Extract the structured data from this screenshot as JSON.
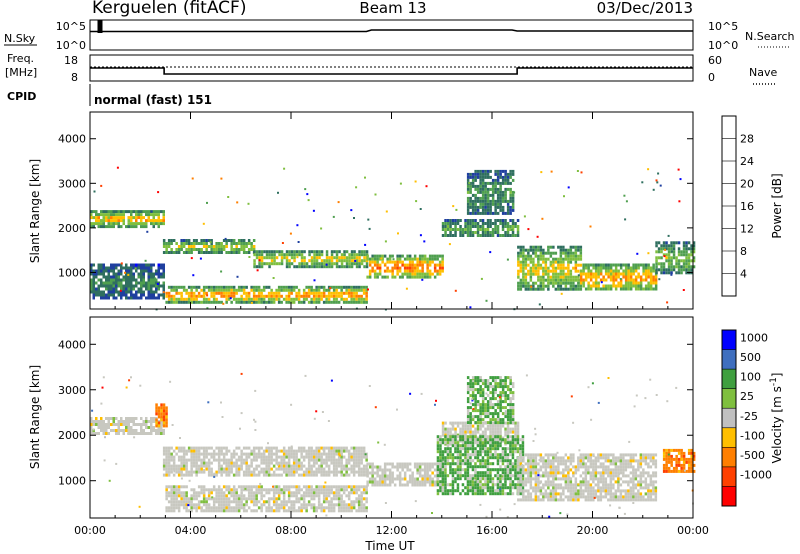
{
  "header": {
    "station": "Kerguelen (fitACF)",
    "beam": "Beam 13",
    "date": "03/Dec/2013"
  },
  "panels": {
    "nsky": {
      "label": "N.Sky",
      "ticks": [
        "10^5",
        "10^0"
      ],
      "right_ticks": [
        "10^5",
        "10^0"
      ],
      "right_label": "N.Search"
    },
    "freq": {
      "label_line1": "Freq.",
      "label_line2": "[MHz]",
      "ticks": [
        "18",
        "8"
      ],
      "right_ticks": [
        "60",
        "0"
      ],
      "right_label": "Nave"
    },
    "cpid": {
      "label": "CPID",
      "value": "normal (fast) 151"
    }
  },
  "colors": {
    "power": [
      "#0000ff",
      "#1f3f9f",
      "#2f6f5f",
      "#4f9f4f",
      "#7fbf3f",
      "#ffbf00",
      "#ff7f00",
      "#ff4000",
      "#ff0000"
    ],
    "velocity": [
      "#ff0000",
      "#ff4000",
      "#ff7f00",
      "#ffbf00",
      "#c0c0c0",
      "#7fbf3f",
      "#3f9f3f",
      "#3f6fbf",
      "#0000ff"
    ],
    "velocity_ground": "#c8c8c0"
  },
  "chart_data": [
    {
      "type": "heatmap",
      "name": "power",
      "xlabel": "",
      "ylabel": "Slant Range [km]",
      "x_ticks": [
        "00:00",
        "04:00",
        "08:00",
        "12:00",
        "16:00",
        "20:00",
        "00:00"
      ],
      "y_ticks": [
        1000,
        2000,
        3000,
        4000
      ],
      "xlim_hours": [
        0,
        24
      ],
      "ylim_km": [
        180,
        4600
      ],
      "colorbar": {
        "label": "Power [dB]",
        "ticks": [
          4,
          8,
          12,
          16,
          20,
          24,
          28
        ],
        "range": [
          0,
          32
        ]
      },
      "bands": [
        {
          "t0": 0.0,
          "t1": 2.9,
          "r0": 2050,
          "r1": 2400,
          "level": 22
        },
        {
          "t0": 2.9,
          "t1": 6.5,
          "r0": 1450,
          "r1": 1750,
          "level": 18
        },
        {
          "t0": 6.5,
          "t1": 11.0,
          "r0": 1150,
          "r1": 1500,
          "level": 20
        },
        {
          "t0": 11.0,
          "t1": 14.0,
          "r0": 900,
          "r1": 1400,
          "level": 26
        },
        {
          "t0": 3.0,
          "t1": 11.0,
          "r0": 350,
          "r1": 700,
          "level": 24
        },
        {
          "t0": 0.0,
          "t1": 2.9,
          "r0": 450,
          "r1": 1200,
          "level": 10
        },
        {
          "t0": 14.0,
          "t1": 17.0,
          "r0": 1800,
          "r1": 2200,
          "level": 14
        },
        {
          "t0": 15.0,
          "t1": 16.8,
          "r0": 2300,
          "r1": 3300,
          "level": 12
        },
        {
          "t0": 17.0,
          "t1": 19.5,
          "r0": 600,
          "r1": 1600,
          "level": 20
        },
        {
          "t0": 19.5,
          "t1": 22.5,
          "r0": 600,
          "r1": 1200,
          "level": 24
        },
        {
          "t0": 22.5,
          "t1": 24.0,
          "r0": 1000,
          "r1": 1700,
          "level": 16
        }
      ]
    },
    {
      "type": "heatmap",
      "name": "velocity",
      "xlabel": "Time UT",
      "ylabel": "Slant Range [km]",
      "x_ticks": [
        "00:00",
        "04:00",
        "08:00",
        "12:00",
        "16:00",
        "20:00",
        "00:00"
      ],
      "y_ticks": [
        1000,
        2000,
        3000,
        4000
      ],
      "xlim_hours": [
        0,
        24
      ],
      "ylim_km": [
        180,
        4600
      ],
      "colorbar": {
        "label": "Velocity [m s^-1]",
        "ticks": [
          "1000",
          "500",
          "100",
          "25",
          "-25",
          "-100",
          "-500",
          "-1000"
        ]
      },
      "bands": [
        {
          "t0": 0.0,
          "t1": 2.9,
          "r0": 2050,
          "r1": 2400,
          "kind": "ground"
        },
        {
          "t0": 2.9,
          "t1": 11.0,
          "r0": 1150,
          "r1": 1750,
          "kind": "ground"
        },
        {
          "t0": 3.0,
          "t1": 11.0,
          "r0": 350,
          "r1": 900,
          "kind": "ground"
        },
        {
          "t0": 11.0,
          "t1": 14.0,
          "r0": 900,
          "r1": 1400,
          "kind": "ground"
        },
        {
          "t0": 14.0,
          "t1": 17.0,
          "r0": 1800,
          "r1": 2300,
          "kind": "ground"
        },
        {
          "t0": 13.8,
          "t1": 17.2,
          "r0": 700,
          "r1": 2000,
          "kind": "green"
        },
        {
          "t0": 15.0,
          "t1": 16.8,
          "r0": 2300,
          "r1": 3300,
          "kind": "green"
        },
        {
          "t0": 17.0,
          "t1": 22.5,
          "r0": 600,
          "r1": 1600,
          "kind": "ground"
        },
        {
          "t0": 22.8,
          "t1": 24.0,
          "r0": 1200,
          "r1": 1700,
          "kind": "orange"
        },
        {
          "t0": 2.6,
          "t1": 3.0,
          "r0": 2200,
          "r1": 2700,
          "kind": "orange"
        }
      ]
    }
  ]
}
